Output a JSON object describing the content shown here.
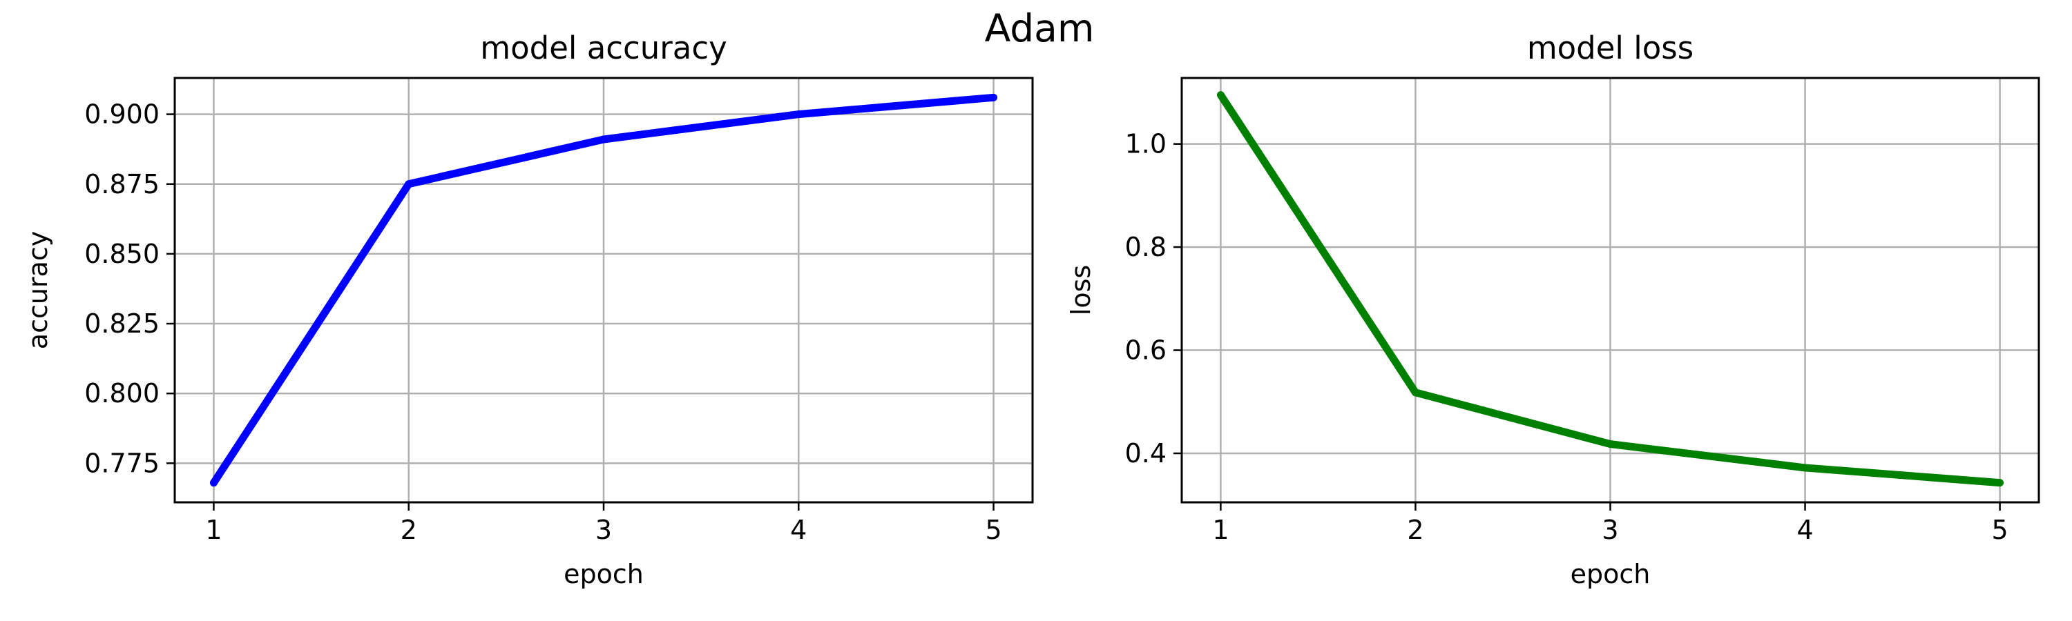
{
  "figure": {
    "suptitle": "Adam"
  },
  "chart_data": [
    {
      "type": "line",
      "title": "model accuracy",
      "xlabel": "epoch",
      "ylabel": "accuracy",
      "x": [
        1,
        2,
        3,
        4,
        5
      ],
      "xticks": [
        "1",
        "2",
        "3",
        "4",
        "5"
      ],
      "xlim": [
        0.8,
        5.2
      ],
      "yticks": [
        "0.775",
        "0.800",
        "0.825",
        "0.850",
        "0.875",
        "0.900"
      ],
      "ylim": [
        0.761,
        0.913
      ],
      "grid": true,
      "series": [
        {
          "values": [
            0.768,
            0.875,
            0.891,
            0.9,
            0.906
          ],
          "color": "#0000ff"
        }
      ]
    },
    {
      "type": "line",
      "title": "model loss",
      "xlabel": "epoch",
      "ylabel": "loss",
      "x": [
        1,
        2,
        3,
        4,
        5
      ],
      "xticks": [
        "1",
        "2",
        "3",
        "4",
        "5"
      ],
      "xlim": [
        0.8,
        5.2
      ],
      "yticks": [
        "0.4",
        "0.6",
        "0.8",
        "1.0"
      ],
      "ylim": [
        0.305,
        1.128
      ],
      "grid": true,
      "series": [
        {
          "values": [
            1.095,
            0.518,
            0.418,
            0.372,
            0.343
          ],
          "color": "#008000"
        }
      ]
    }
  ]
}
